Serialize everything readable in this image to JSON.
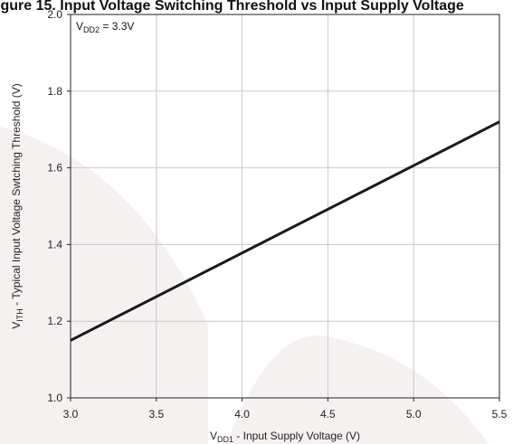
{
  "title": "igure 15. Input Voltage Switching Threshold vs Input Supply Voltage",
  "colors": {
    "line": "#1a1a1a",
    "grid": "#c8c8c8",
    "frame": "#222222",
    "watermark": "#f3eeee"
  },
  "chart_data": {
    "type": "line",
    "title": "igure 15. Input Voltage Switching Threshold vs Input Supply Voltage",
    "xlabel": {
      "main": "V",
      "sub": "DD1",
      "rest": " - Input Supply Voltage (V)"
    },
    "ylabel": {
      "main": "V",
      "sub": "ITH",
      "rest": " - Typical Input Voltage Swtching Threshold (V)"
    },
    "annotation": {
      "main": "V",
      "sub": "DD2",
      "rest": " = 3.3V"
    },
    "xlim": [
      3.0,
      5.5
    ],
    "ylim": [
      1.0,
      2.0
    ],
    "xticks": [
      3.0,
      3.5,
      4.0,
      4.5,
      5.0,
      5.5
    ],
    "xtick_labels": [
      "3.0",
      "3.5",
      "4.0",
      "4.5",
      "5.0",
      "5.5"
    ],
    "yticks": [
      1.0,
      1.2,
      1.4,
      1.6,
      1.8,
      2.0
    ],
    "ytick_labels": [
      "1.0",
      "1.2",
      "1.4",
      "1.6",
      "1.8",
      "2.0"
    ],
    "grid": true,
    "series": [
      {
        "x": [
          3.0,
          5.5
        ],
        "y": [
          1.15,
          1.72
        ]
      }
    ]
  }
}
